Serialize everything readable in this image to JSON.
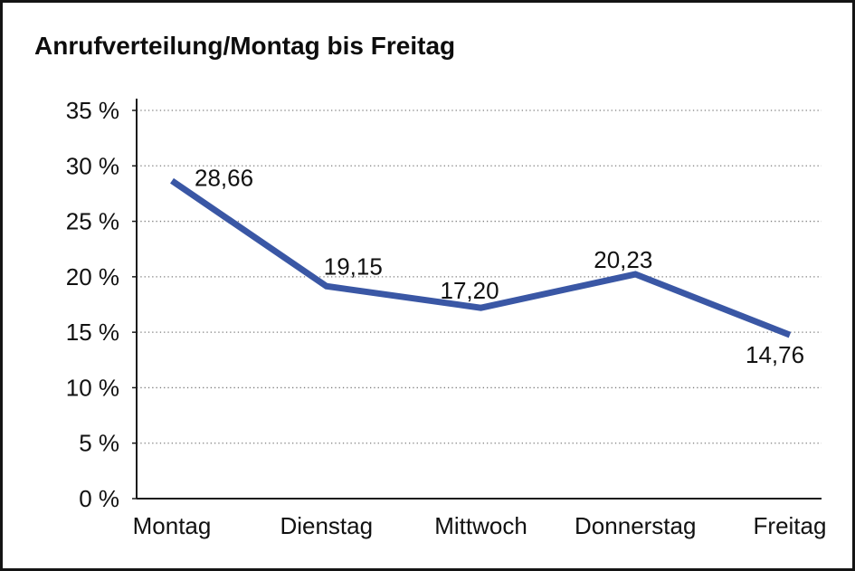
{
  "chart_data": {
    "type": "line",
    "title": "Anrufverteilung/Montag bis Freitag",
    "categories": [
      "Montag",
      "Dienstag",
      "Mittwoch",
      "Donnerstag",
      "Freitag"
    ],
    "values": [
      28.66,
      19.15,
      17.2,
      20.23,
      14.76
    ],
    "value_labels": [
      "28,66",
      "19,15",
      "17,20",
      "20,23",
      "14,76"
    ],
    "value_label_positions": [
      "right-of-point",
      "above",
      "above",
      "above",
      "below"
    ],
    "xlabel": "",
    "ylabel": "",
    "ylim": [
      0,
      35
    ],
    "ytick_step": 5,
    "ytick_labels": [
      "0 %",
      "5 %",
      "10 %",
      "15 %",
      "20 %",
      "25 %",
      "30 %",
      "35 %"
    ],
    "grid": "horizontal-dotted",
    "legend": "none",
    "line_color": "#3A57A5",
    "axis_color": "#1a1a1a",
    "gridline_color": "#7d7d7d",
    "text_color": "#111111"
  }
}
